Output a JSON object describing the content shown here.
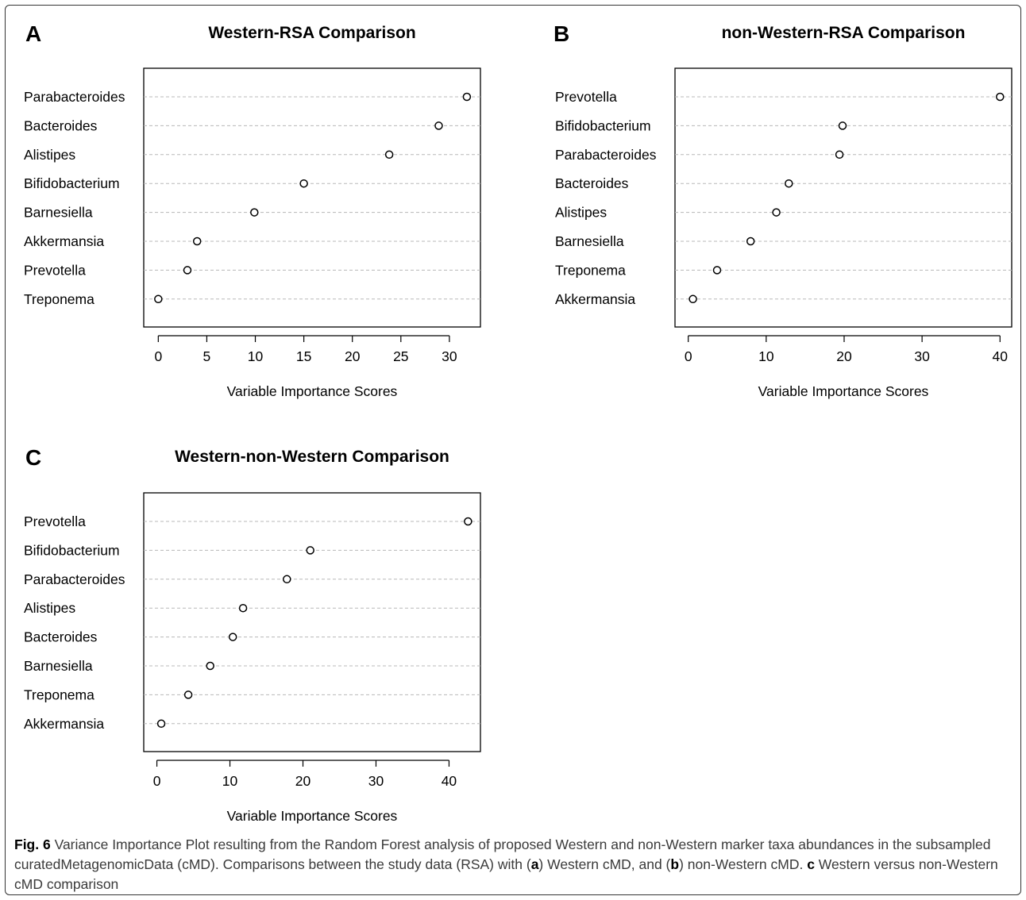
{
  "chart_data": [
    {
      "type": "scatter",
      "panel": "A",
      "title": "Western-RSA Comparison",
      "xlabel": "Variable Importance Scores",
      "xlim": [
        -1.5,
        33.2
      ],
      "xticks": [
        0,
        5,
        10,
        15,
        20,
        25,
        30
      ],
      "categories": [
        "Parabacteroides",
        "Bacteroides",
        "Alistipes",
        "Bifidobacterium",
        "Barnesiella",
        "Akkermansia",
        "Prevotella",
        "Treponema"
      ],
      "values": [
        31.8,
        28.9,
        23.8,
        15.0,
        9.9,
        4.0,
        3.0,
        0.0
      ]
    },
    {
      "type": "scatter",
      "panel": "B",
      "title": "non-Western-RSA Comparison",
      "xlabel": "Variable Importance Scores",
      "xlim": [
        -1.7,
        41.5
      ],
      "xticks": [
        0,
        10,
        20,
        30,
        40
      ],
      "categories": [
        "Prevotella",
        "Bifidobacterium",
        "Parabacteroides",
        "Bacteroides",
        "Alistipes",
        "Barnesiella",
        "Treponema",
        "Akkermansia"
      ],
      "values": [
        40.0,
        19.8,
        19.4,
        12.9,
        11.3,
        8.0,
        3.7,
        0.6
      ]
    },
    {
      "type": "scatter",
      "panel": "C",
      "title": "Western-non-Western Comparison",
      "xlabel": "Variable Importance Scores",
      "xlim": [
        -1.8,
        44.3
      ],
      "xticks": [
        0,
        10,
        20,
        30,
        40
      ],
      "categories": [
        "Prevotella",
        "Bifidobacterium",
        "Parabacteroides",
        "Alistipes",
        "Bacteroides",
        "Barnesiella",
        "Treponema",
        "Akkermansia"
      ],
      "values": [
        42.6,
        21.0,
        17.8,
        11.8,
        10.4,
        7.3,
        4.3,
        0.6
      ]
    }
  ],
  "caption": {
    "fig_label": "Fig. 6",
    "text_1": " Variance Importance Plot resulting from the Random Forest analysis of proposed Western and non-Western marker taxa abundances in the subsampled curatedMetagenomicData (cMD). Comparisons between the study data (RSA) with (",
    "bold_a": "a",
    "text_2": ") Western cMD, and (",
    "bold_b": "b",
    "text_3": ") non-Western cMD. ",
    "bold_c": "c",
    "text_4": " Western versus non-Western cMD comparison"
  }
}
